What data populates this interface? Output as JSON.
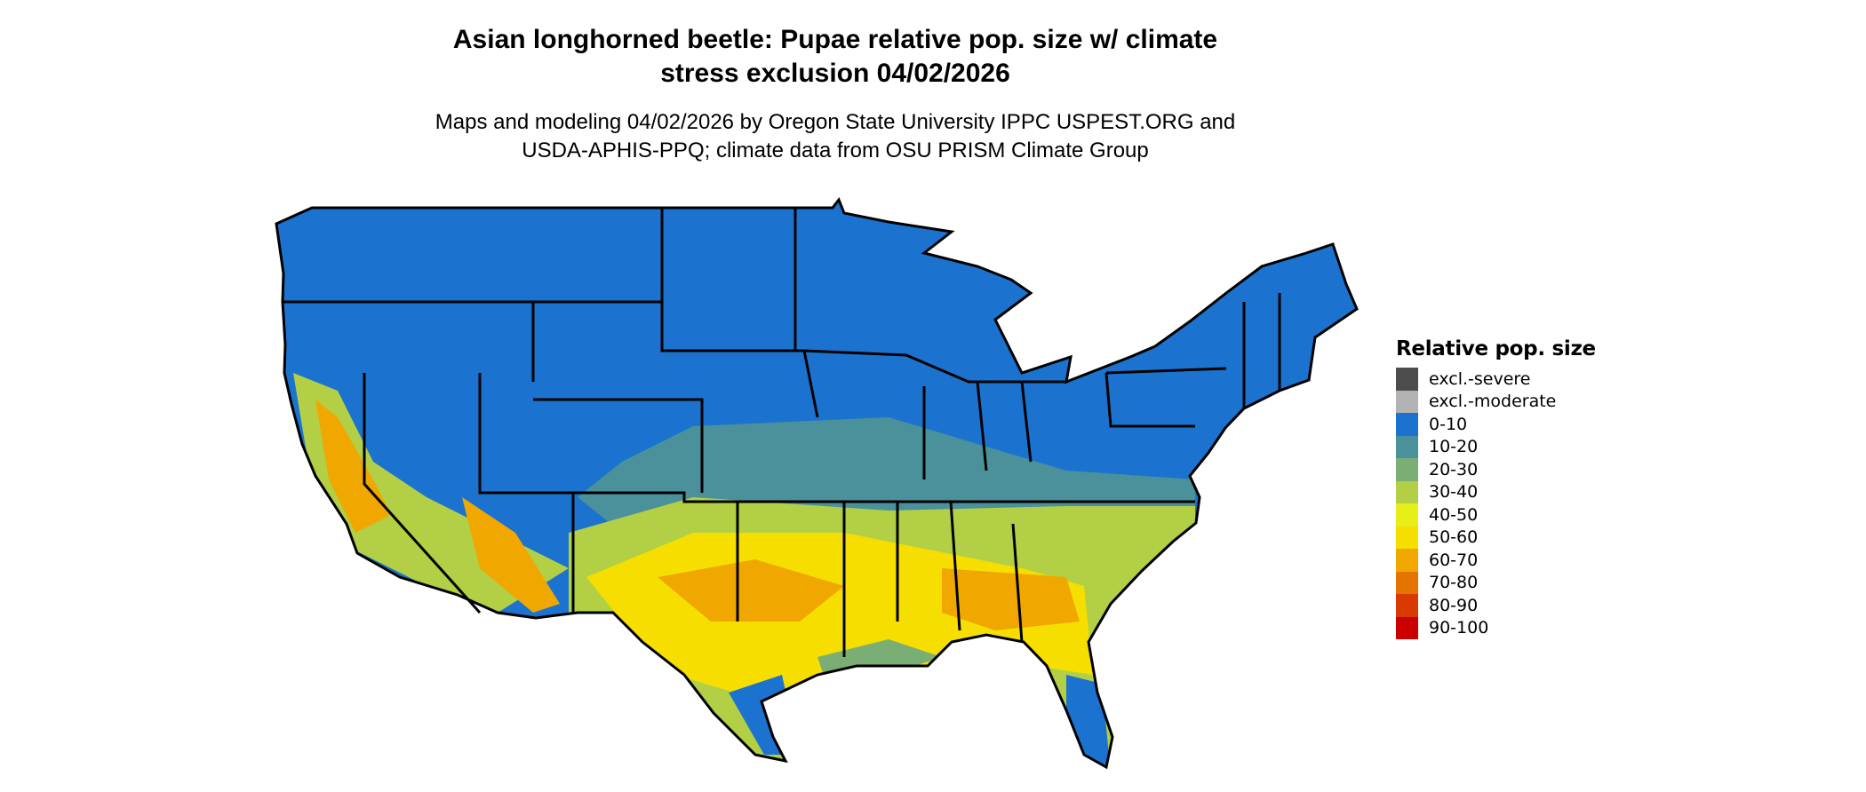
{
  "title": {
    "line1": "Asian longhorned beetle: Pupae relative pop. size w/ climate",
    "line2": "stress exclusion 04/02/2026"
  },
  "subtitle": {
    "line1": "Maps and modeling 04/02/2026 by Oregon State University IPPC USPEST.ORG and",
    "line2": "USDA-APHIS-PPQ; climate data from OSU PRISM Climate Group"
  },
  "chart_data": {
    "type": "map",
    "region": "Contiguous United States",
    "legend": {
      "title": "Relative pop. size",
      "placement": "right",
      "items": [
        {
          "label": "excl.-severe",
          "color": "#4d4d4d"
        },
        {
          "label": "excl.-moderate",
          "color": "#b3b3b3"
        },
        {
          "label": "0-10",
          "color": "#1b73cf"
        },
        {
          "label": "10-20",
          "color": "#4a919c"
        },
        {
          "label": "20-30",
          "color": "#7aae74"
        },
        {
          "label": "30-40",
          "color": "#b2cf45"
        },
        {
          "label": "40-50",
          "color": "#e6ef18"
        },
        {
          "label": "50-60",
          "color": "#f6df00"
        },
        {
          "label": "60-70",
          "color": "#f0a800"
        },
        {
          "label": "70-80",
          "color": "#e57300"
        },
        {
          "label": "80-90",
          "color": "#d93a00"
        },
        {
          "label": "90-100",
          "color": "#cc0000"
        }
      ]
    }
  }
}
